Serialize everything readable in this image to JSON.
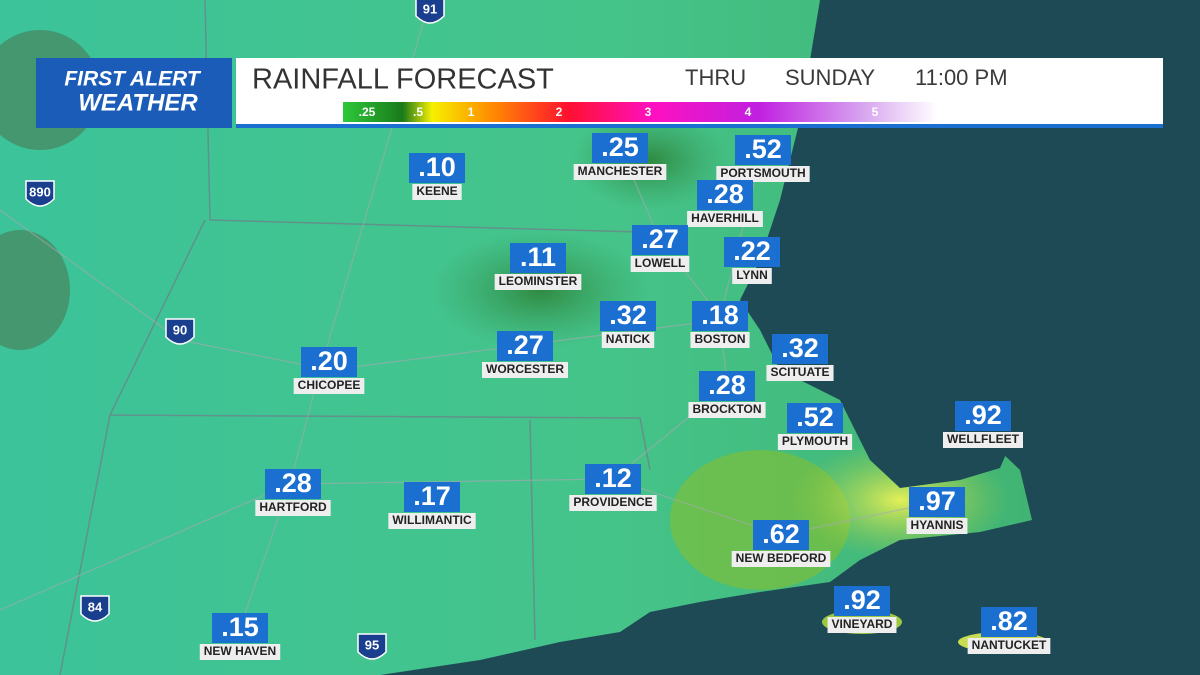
{
  "header": {
    "logo_top": "FIRST ALERT",
    "logo_bottom": "WEATHER",
    "title": "RAINFALL FORECAST",
    "thru": "THRU",
    "day": "SUNDAY",
    "time": "11:00 PM"
  },
  "scale": {
    "labels": [
      ".25",
      ".5",
      "1",
      "2",
      "3",
      "4",
      "5"
    ]
  },
  "highways": [
    "91",
    "890",
    "90",
    "84",
    "95"
  ],
  "cities": [
    {
      "name": "KEENE",
      "value": ".10"
    },
    {
      "name": "MANCHESTER",
      "value": ".25"
    },
    {
      "name": "PORTSMOUTH",
      "value": ".52"
    },
    {
      "name": "HAVERHILL",
      "value": ".28"
    },
    {
      "name": "LOWELL",
      "value": ".27"
    },
    {
      "name": "LYNN",
      "value": ".22"
    },
    {
      "name": "LEOMINSTER",
      "value": ".11"
    },
    {
      "name": "NATICK",
      "value": ".32"
    },
    {
      "name": "BOSTON",
      "value": ".18"
    },
    {
      "name": "WORCESTER",
      "value": ".27"
    },
    {
      "name": "CHICOPEE",
      "value": ".20"
    },
    {
      "name": "SCITUATE",
      "value": ".32"
    },
    {
      "name": "BROCKTON",
      "value": ".28"
    },
    {
      "name": "PLYMOUTH",
      "value": ".52"
    },
    {
      "name": "WELLFLEET",
      "value": ".92"
    },
    {
      "name": "PROVIDENCE",
      "value": ".12"
    },
    {
      "name": "HARTFORD",
      "value": ".28"
    },
    {
      "name": "WILLIMANTIC",
      "value": ".17"
    },
    {
      "name": "HYANNIS",
      "value": ".97"
    },
    {
      "name": "NEW BEDFORD",
      "value": ".62"
    },
    {
      "name": "VINEYARD",
      "value": ".92"
    },
    {
      "name": "NEW HAVEN",
      "value": ".15"
    },
    {
      "name": "NANTUCKET",
      "value": ".82"
    }
  ]
}
